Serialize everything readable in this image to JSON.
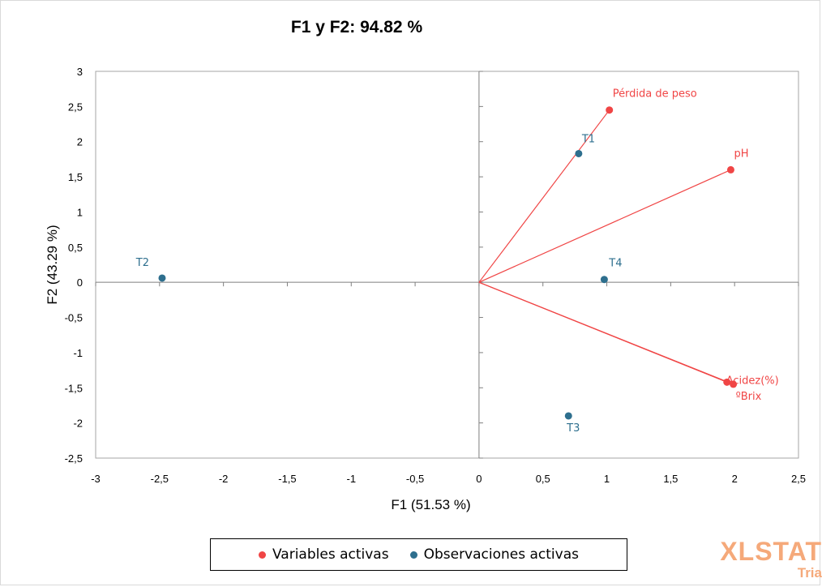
{
  "chart_data": {
    "type": "scatter",
    "title": "F1 y F2: 94.82 %",
    "xlabel": "F1 (51.53 %)",
    "ylabel": "F2 (43.29 %)",
    "xlim": [
      -3,
      2.5
    ],
    "ylim": [
      -2.5,
      3
    ],
    "xticks": [
      -3,
      -2.5,
      -2,
      -1.5,
      -1,
      -0.5,
      0,
      0.5,
      1,
      1.5,
      2,
      2.5
    ],
    "yticks": [
      -2.5,
      -2,
      -1.5,
      -1,
      -0.5,
      0,
      0.5,
      1,
      1.5,
      2,
      2.5,
      3
    ],
    "grid": false,
    "legend_position": "bottom",
    "series": [
      {
        "name": "Variables activas",
        "color": "#f04545",
        "vectors_from_origin": true,
        "points": [
          {
            "label": "Pérdida de peso",
            "x": 1.02,
            "y": 2.45
          },
          {
            "label": "pH",
            "x": 1.97,
            "y": 1.6
          },
          {
            "label": "Acidez(%)",
            "x": 1.94,
            "y": -1.42
          },
          {
            "label": "ºBrix",
            "x": 1.99,
            "y": -1.45
          }
        ]
      },
      {
        "name": "Observaciones activas",
        "color": "#2e6f8e",
        "vectors_from_origin": false,
        "points": [
          {
            "label": "T1",
            "x": 0.78,
            "y": 1.83
          },
          {
            "label": "T2",
            "x": -2.48,
            "y": 0.06
          },
          {
            "label": "T3",
            "x": 0.7,
            "y": -1.9
          },
          {
            "label": "T4",
            "x": 0.98,
            "y": 0.04
          }
        ]
      }
    ]
  },
  "logo": {
    "line1": "XLSTAT",
    "line2": "Tria"
  }
}
